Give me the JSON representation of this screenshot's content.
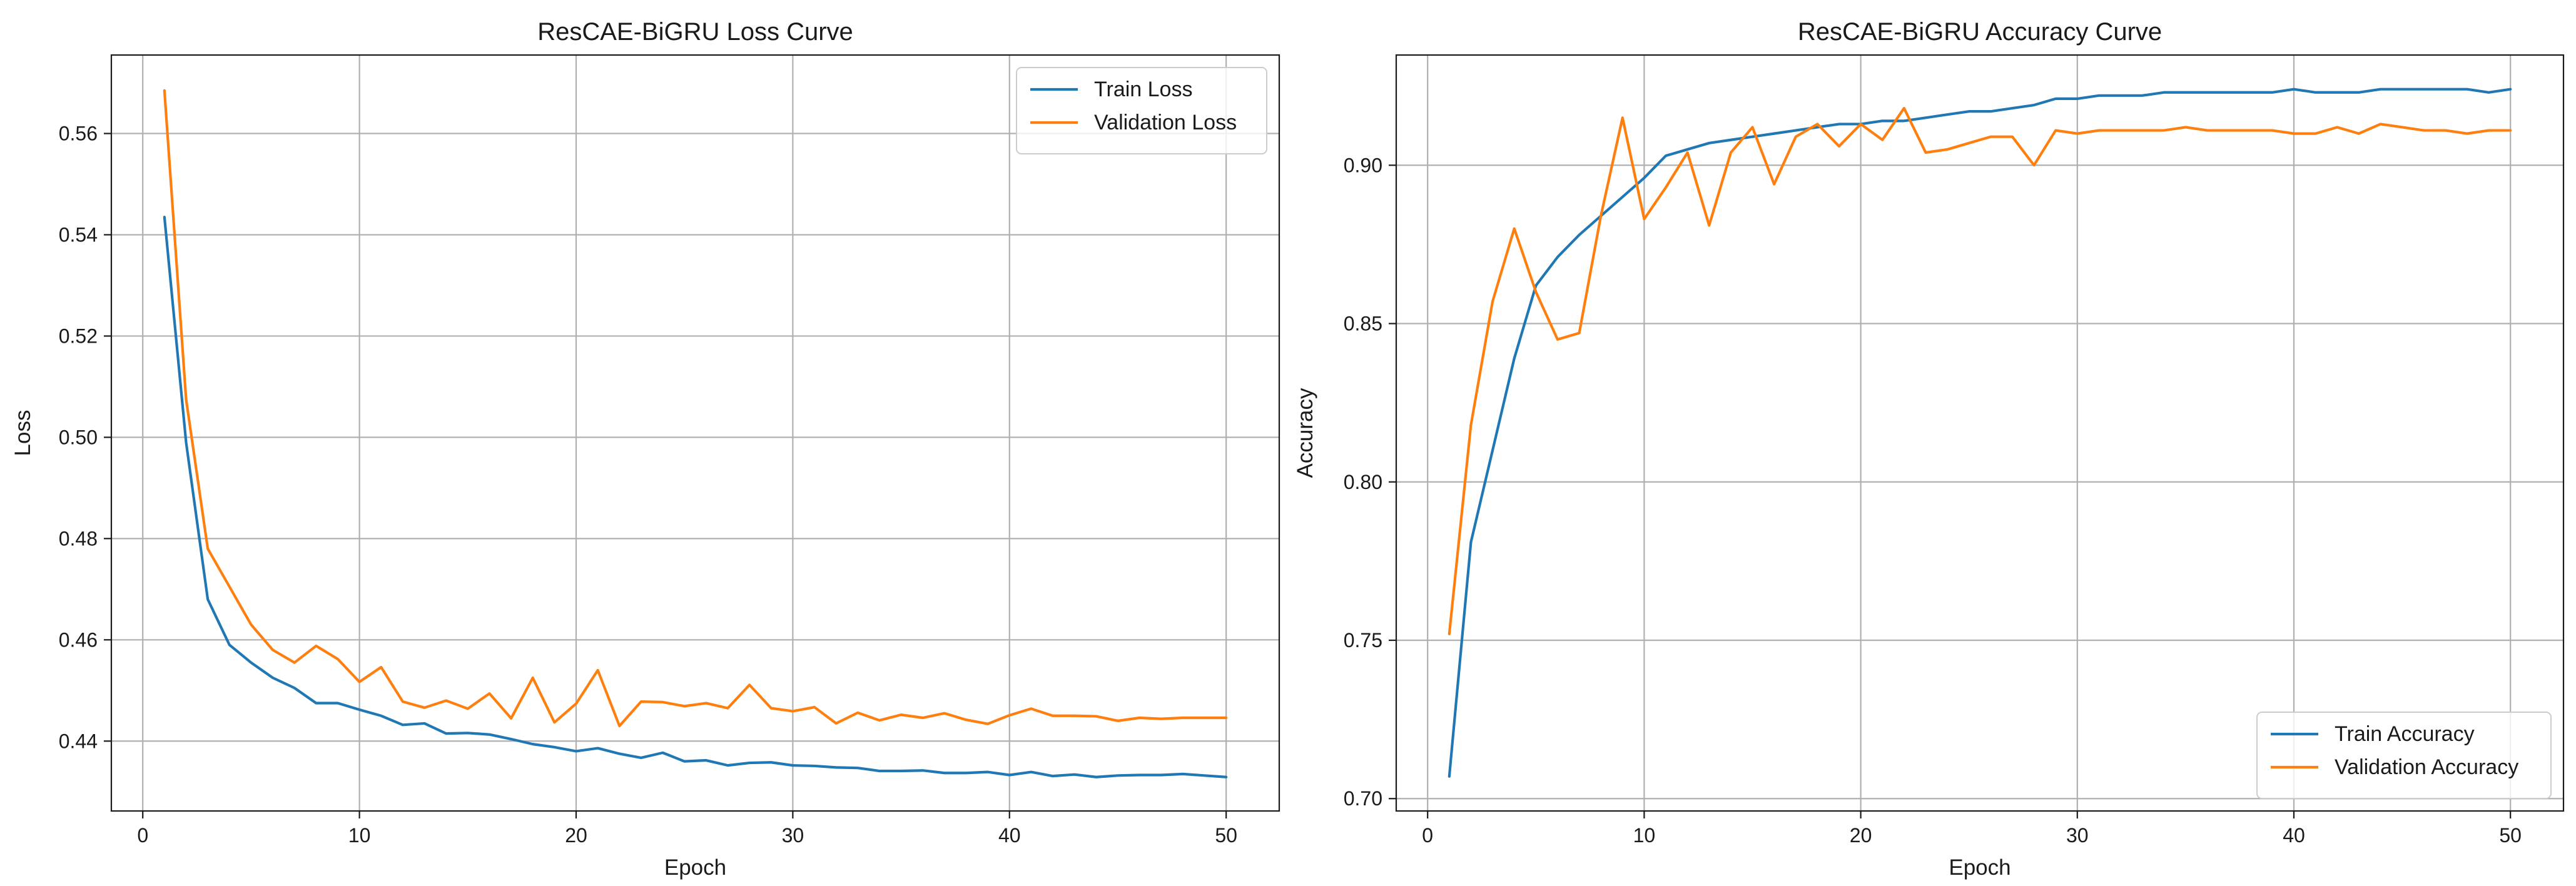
{
  "chart_data": [
    {
      "type": "line",
      "title": "ResCAE-BiGRU Loss Curve",
      "xlabel": "Epoch",
      "ylabel": "Loss",
      "xlim": [
        -1.45,
        52.45
      ],
      "ylim": [
        0.4262,
        0.5755
      ],
      "xticks": [
        0,
        10,
        20,
        30,
        40,
        50
      ],
      "yticks": [
        0.44,
        0.46,
        0.48,
        0.5,
        0.52,
        0.54,
        0.56
      ],
      "ytick_labels": [
        "0.44",
        "0.46",
        "0.48",
        "0.50",
        "0.52",
        "0.54",
        "0.56"
      ],
      "grid": true,
      "legend_position": "top-right",
      "x": [
        1,
        2,
        3,
        4,
        5,
        6,
        7,
        8,
        9,
        10,
        11,
        12,
        13,
        14,
        15,
        16,
        17,
        18,
        19,
        20,
        21,
        22,
        23,
        24,
        25,
        26,
        27,
        28,
        29,
        30,
        31,
        32,
        33,
        34,
        35,
        36,
        37,
        38,
        39,
        40,
        41,
        42,
        43,
        44,
        45,
        46,
        47,
        48,
        49,
        50
      ],
      "series": [
        {
          "name": "Train Loss",
          "color": "#1f77b4",
          "values": [
            0.5435,
            0.499,
            0.468,
            0.459,
            0.4555,
            0.4525,
            0.4505,
            0.4475,
            0.4475,
            0.4462,
            0.445,
            0.4432,
            0.4435,
            0.4415,
            0.4416,
            0.4413,
            0.4404,
            0.4394,
            0.4388,
            0.438,
            0.4386,
            0.4375,
            0.4367,
            0.4377,
            0.436,
            0.4362,
            0.4352,
            0.4357,
            0.4358,
            0.4352,
            0.4351,
            0.4348,
            0.4347,
            0.4341,
            0.4341,
            0.4342,
            0.4337,
            0.4337,
            0.4339,
            0.4333,
            0.4339,
            0.4331,
            0.4334,
            0.4329,
            0.4332,
            0.4333,
            0.4333,
            0.4335,
            0.4332,
            0.4329
          ]
        },
        {
          "name": "Validation Loss",
          "color": "#ff7f0e",
          "values": [
            0.5685,
            0.5075,
            0.478,
            0.4705,
            0.463,
            0.458,
            0.4555,
            0.4588,
            0.4562,
            0.4517,
            0.4546,
            0.4478,
            0.4466,
            0.448,
            0.4464,
            0.4494,
            0.4445,
            0.4525,
            0.4437,
            0.4474,
            0.454,
            0.443,
            0.4478,
            0.4477,
            0.4469,
            0.4475,
            0.4465,
            0.4511,
            0.4465,
            0.4459,
            0.4467,
            0.4435,
            0.4456,
            0.4441,
            0.4452,
            0.4446,
            0.4455,
            0.4442,
            0.4434,
            0.4451,
            0.4464,
            0.445,
            0.445,
            0.4449,
            0.444,
            0.4446,
            0.4444,
            0.4446,
            0.4446,
            0.4446
          ]
        }
      ]
    },
    {
      "type": "line",
      "title": "ResCAE-BiGRU Accuracy Curve",
      "xlabel": "Epoch",
      "ylabel": "Accuracy",
      "xlim": [
        -1.45,
        52.45
      ],
      "ylim": [
        0.6961,
        0.9348
      ],
      "xticks": [
        0,
        10,
        20,
        30,
        40,
        50
      ],
      "yticks": [
        0.7,
        0.75,
        0.8,
        0.85,
        0.9
      ],
      "ytick_labels": [
        "0.70",
        "0.75",
        "0.80",
        "0.85",
        "0.90"
      ],
      "grid": true,
      "legend_position": "bottom-right",
      "x": [
        1,
        2,
        3,
        4,
        5,
        6,
        7,
        8,
        9,
        10,
        11,
        12,
        13,
        14,
        15,
        16,
        17,
        18,
        19,
        20,
        21,
        22,
        23,
        24,
        25,
        26,
        27,
        28,
        29,
        30,
        31,
        32,
        33,
        34,
        35,
        36,
        37,
        38,
        39,
        40,
        41,
        42,
        43,
        44,
        45,
        46,
        47,
        48,
        49,
        50
      ],
      "series": [
        {
          "name": "Train Accuracy",
          "color": "#1f77b4",
          "values": [
            0.707,
            0.781,
            0.81,
            0.839,
            0.862,
            0.871,
            0.878,
            0.884,
            0.89,
            0.896,
            0.903,
            0.905,
            0.907,
            0.908,
            0.909,
            0.91,
            0.911,
            0.912,
            0.913,
            0.913,
            0.914,
            0.914,
            0.915,
            0.916,
            0.917,
            0.917,
            0.918,
            0.919,
            0.921,
            0.921,
            0.922,
            0.922,
            0.922,
            0.923,
            0.923,
            0.923,
            0.923,
            0.923,
            0.923,
            0.924,
            0.923,
            0.923,
            0.923,
            0.924,
            0.924,
            0.924,
            0.924,
            0.924,
            0.923,
            0.924
          ]
        },
        {
          "name": "Validation Accuracy",
          "color": "#ff7f0e",
          "values": [
            0.752,
            0.818,
            0.857,
            0.88,
            0.86,
            0.845,
            0.847,
            0.884,
            0.915,
            0.883,
            0.893,
            0.904,
            0.881,
            0.904,
            0.912,
            0.894,
            0.909,
            0.913,
            0.906,
            0.913,
            0.908,
            0.918,
            0.904,
            0.905,
            0.907,
            0.909,
            0.909,
            0.9,
            0.911,
            0.91,
            0.911,
            0.911,
            0.911,
            0.911,
            0.912,
            0.911,
            0.911,
            0.911,
            0.911,
            0.91,
            0.91,
            0.912,
            0.91,
            0.913,
            0.912,
            0.911,
            0.911,
            0.91,
            0.911,
            0.911
          ]
        }
      ]
    }
  ]
}
